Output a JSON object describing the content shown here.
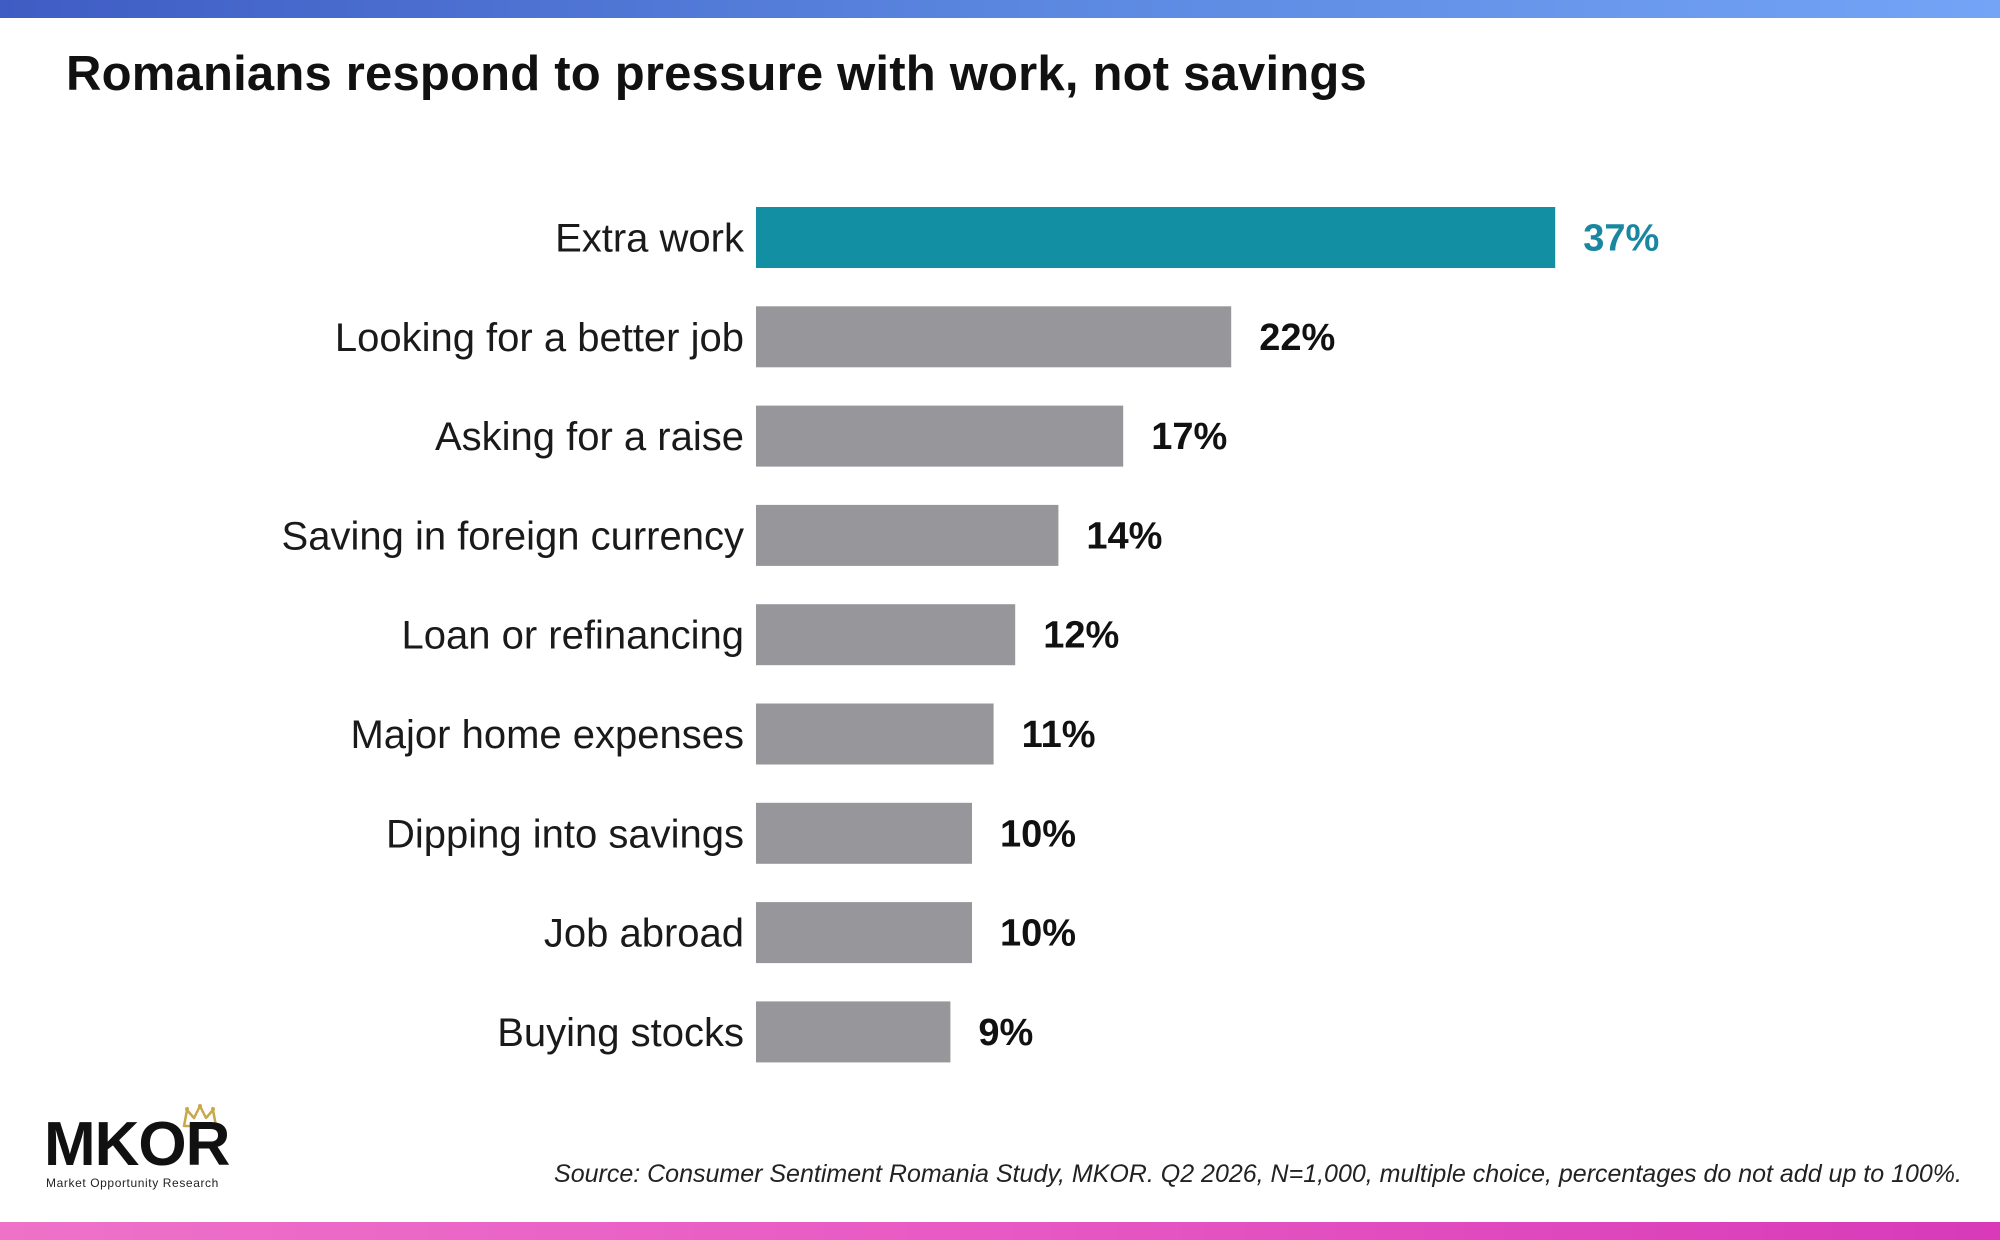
{
  "title": "Romanians respond to pressure with work, not savings",
  "chart_data": {
    "type": "bar",
    "orientation": "horizontal",
    "categories": [
      "Extra work",
      "Looking for a better job",
      "Asking for a raise",
      "Saving in foreign currency",
      "Loan or refinancing",
      "Major home expenses",
      "Dipping into savings",
      "Job abroad",
      "Buying stocks"
    ],
    "values": [
      37,
      22,
      17,
      14,
      12,
      11,
      10,
      10,
      9
    ],
    "value_labels": [
      "37%",
      "22%",
      "17%",
      "14%",
      "12%",
      "11%",
      "10%",
      "10%",
      "9%"
    ],
    "unit": "%",
    "highlight_index": 0,
    "colors": {
      "highlight": "#138fa3",
      "default": "#97979b",
      "highlight_label": "#1a87a1",
      "default_label": "#111111"
    },
    "grid": false,
    "legend": "none"
  },
  "logo": {
    "name": "MKOR",
    "tagline": "Market Opportunity Research",
    "icon": "crown-icon"
  },
  "source": "Source: Consumer Sentiment Romania Study, MKOR. Q2 2026, N=1,000, multiple choice, percentages do not add up to 100%."
}
